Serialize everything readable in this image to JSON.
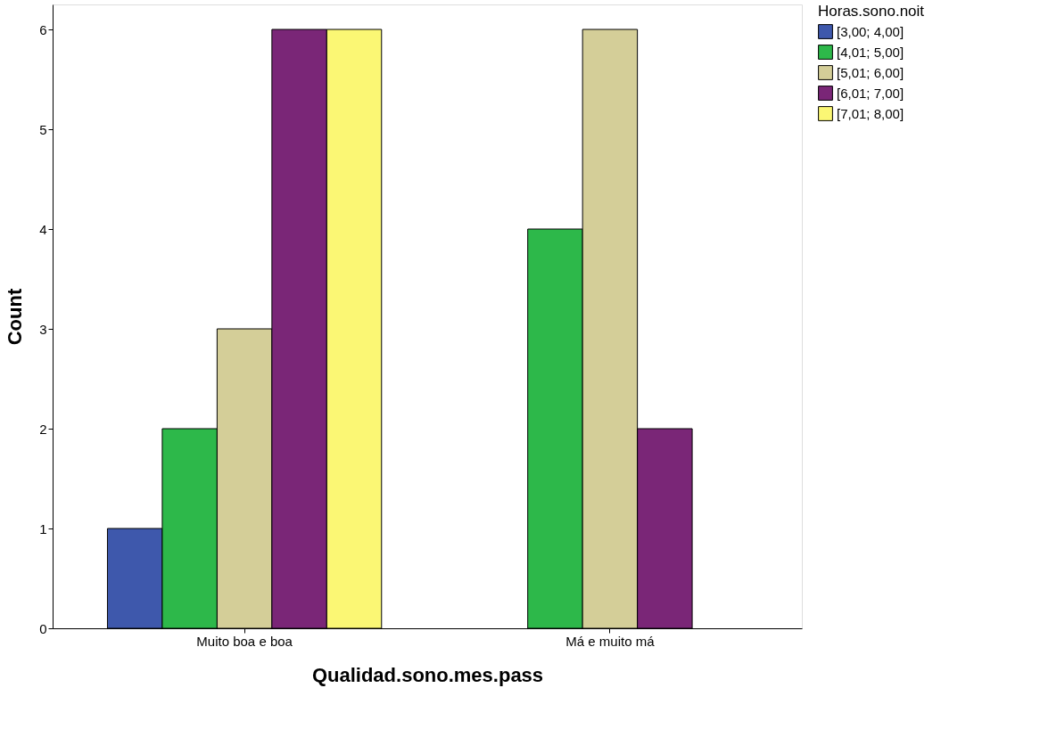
{
  "chart_data": {
    "type": "bar",
    "xlabel": "Qualidad.sono.mes.pass",
    "ylabel": "Count",
    "legend_title": "Horas.sono.noit",
    "categories": [
      "Muito boa e boa",
      "Má e muito má"
    ],
    "series": [
      {
        "name": "[3,00; 4,00]",
        "color": "#3e58ac",
        "values": [
          1,
          null
        ]
      },
      {
        "name": "[4,01; 5,00]",
        "color": "#2db84a",
        "values": [
          2,
          4
        ]
      },
      {
        "name": "[5,01; 6,00]",
        "color": "#d4ce98",
        "values": [
          3,
          6
        ]
      },
      {
        "name": "[6,01; 7,00]",
        "color": "#7a2677",
        "values": [
          6,
          2
        ]
      },
      {
        "name": "[7,01; 8,00]",
        "color": "#fbf774",
        "values": [
          6,
          null
        ]
      }
    ],
    "ylim": [
      0,
      6.25
    ],
    "yticks": [
      0,
      1,
      2,
      3,
      4,
      5,
      6
    ],
    "grid": false,
    "legend": "top right"
  }
}
